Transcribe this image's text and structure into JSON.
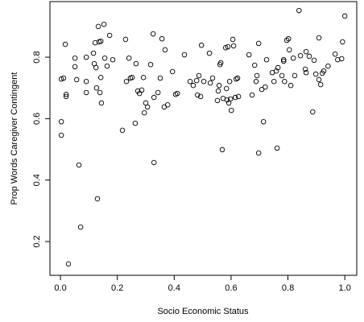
{
  "chart_data": {
    "type": "scatter",
    "xlabel": "Socio Economic Status",
    "ylabel": "Prop Words Caregiver Contingent",
    "xlim": [
      -0.037,
      1.042
    ],
    "ylim": [
      0.09,
      0.981
    ],
    "xticks": [
      {
        "value": 0,
        "label": "0.0"
      },
      0.2,
      0.4,
      0.6,
      0.8,
      {
        "value": 1,
        "label": "1.0"
      }
    ],
    "yticks": [
      0.2,
      0.4,
      0.6,
      0.8
    ],
    "color": "#000000",
    "x": [
      0.003,
      0.003,
      0.003,
      0.011,
      0.017,
      0.02,
      0.02,
      0.028,
      0.051,
      0.051,
      0.057,
      0.065,
      0.071,
      0.091,
      0.091,
      0.091,
      0.116,
      0.119,
      0.122,
      0.125,
      0.127,
      0.13,
      0.133,
      0.136,
      0.139,
      0.142,
      0.142,
      0.144,
      0.153,
      0.156,
      0.164,
      0.173,
      0.184,
      0.218,
      0.229,
      0.232,
      0.241,
      0.246,
      0.252,
      0.263,
      0.266,
      0.272,
      0.278,
      0.286,
      0.292,
      0.295,
      0.3,
      0.306,
      0.317,
      0.326,
      0.329,
      0.329,
      0.343,
      0.351,
      0.357,
      0.365,
      0.368,
      0.377,
      0.394,
      0.405,
      0.411,
      0.436,
      0.456,
      0.467,
      0.479,
      0.482,
      0.487,
      0.493,
      0.496,
      0.504,
      0.524,
      0.527,
      0.535,
      0.552,
      0.555,
      0.558,
      0.561,
      0.564,
      0.569,
      0.572,
      0.581,
      0.584,
      0.586,
      0.589,
      0.592,
      0.595,
      0.598,
      0.601,
      0.606,
      0.609,
      0.615,
      0.618,
      0.623,
      0.626,
      0.663,
      0.674,
      0.683,
      0.688,
      0.691,
      0.697,
      0.697,
      0.708,
      0.714,
      0.72,
      0.725,
      0.745,
      0.751,
      0.759,
      0.762,
      0.765,
      0.779,
      0.785,
      0.785,
      0.788,
      0.796,
      0.802,
      0.805,
      0.81,
      0.819,
      0.824,
      0.839,
      0.844,
      0.861,
      0.864,
      0.864,
      0.875,
      0.887,
      0.892,
      0.898,
      0.909,
      0.909,
      0.915,
      0.921,
      0.926,
      0.941,
      0.966,
      0.975,
      0.989,
      0.992,
      1.0
    ],
    "y": [
      0.59,
      0.546,
      0.729,
      0.732,
      0.842,
      0.672,
      0.679,
      0.127,
      0.797,
      0.769,
      0.727,
      0.449,
      0.247,
      0.8,
      0.721,
      0.685,
      0.813,
      0.779,
      0.847,
      0.766,
      0.7,
      0.339,
      0.9,
      0.85,
      0.685,
      0.852,
      0.734,
      0.651,
      0.907,
      0.797,
      0.771,
      0.871,
      0.792,
      0.562,
      0.858,
      0.721,
      0.797,
      0.732,
      0.734,
      0.585,
      0.779,
      0.69,
      0.682,
      0.693,
      0.734,
      0.619,
      0.651,
      0.638,
      0.776,
      0.876,
      0.457,
      0.669,
      0.685,
      0.732,
      0.86,
      0.638,
      0.824,
      0.645,
      0.753,
      0.679,
      0.682,
      0.808,
      0.721,
      0.708,
      0.724,
      0.677,
      0.74,
      0.672,
      0.839,
      0.721,
      0.813,
      0.716,
      0.732,
      0.659,
      0.69,
      0.708,
      0.776,
      0.782,
      0.499,
      0.666,
      0.831,
      0.698,
      0.661,
      0.834,
      0.651,
      0.721,
      0.664,
      0.627,
      0.858,
      0.837,
      0.669,
      0.729,
      0.732,
      0.672,
      0.808,
      0.677,
      0.774,
      0.721,
      0.74,
      0.845,
      0.488,
      0.695,
      0.59,
      0.703,
      0.792,
      0.75,
      0.721,
      0.755,
      0.504,
      0.766,
      0.74,
      0.787,
      0.792,
      0.721,
      0.855,
      0.86,
      0.824,
      0.708,
      0.797,
      0.74,
      0.952,
      0.805,
      0.761,
      0.75,
      0.818,
      0.803,
      0.622,
      0.79,
      0.745,
      0.727,
      0.863,
      0.711,
      0.748,
      0.755,
      0.771,
      0.81,
      0.792,
      0.795,
      0.85,
      0.934
    ]
  }
}
